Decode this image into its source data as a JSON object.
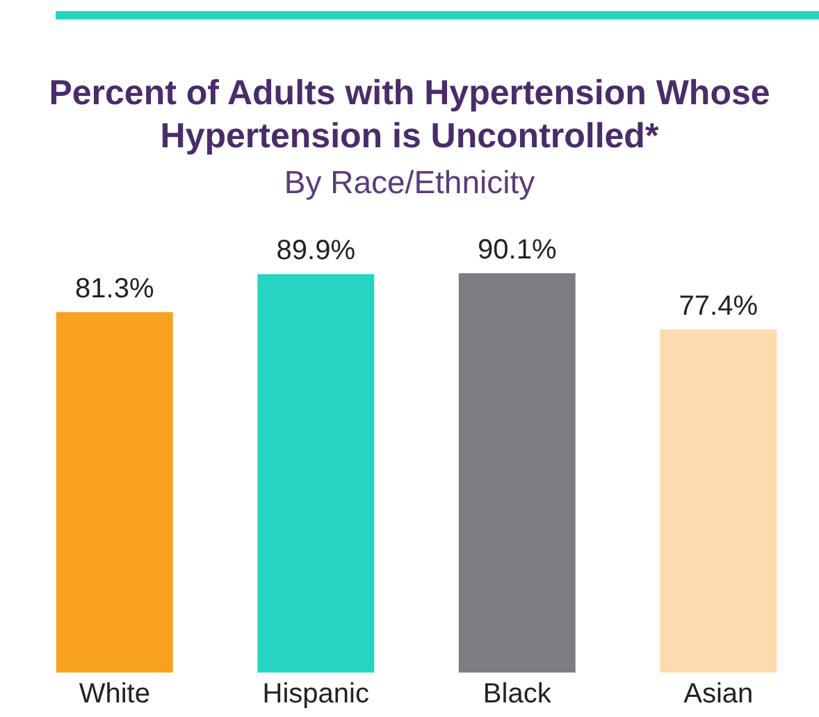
{
  "chart_data": {
    "type": "bar",
    "title": "Percent of Adults with Hypertension Whose Hypertension is Uncontrolled*",
    "subtitle": "By Race/Ethnicity",
    "categories": [
      "White",
      "Hispanic",
      "Black",
      "Asian"
    ],
    "values": [
      81.3,
      89.9,
      90.1,
      77.4
    ],
    "colors": [
      "#f7a11f",
      "#26d5c1",
      "#7c7d80",
      "#fddbae"
    ],
    "value_labels": [
      "81.3%",
      "89.9%",
      "90.1%",
      "77.4%"
    ],
    "grid": false,
    "legend": false
  }
}
